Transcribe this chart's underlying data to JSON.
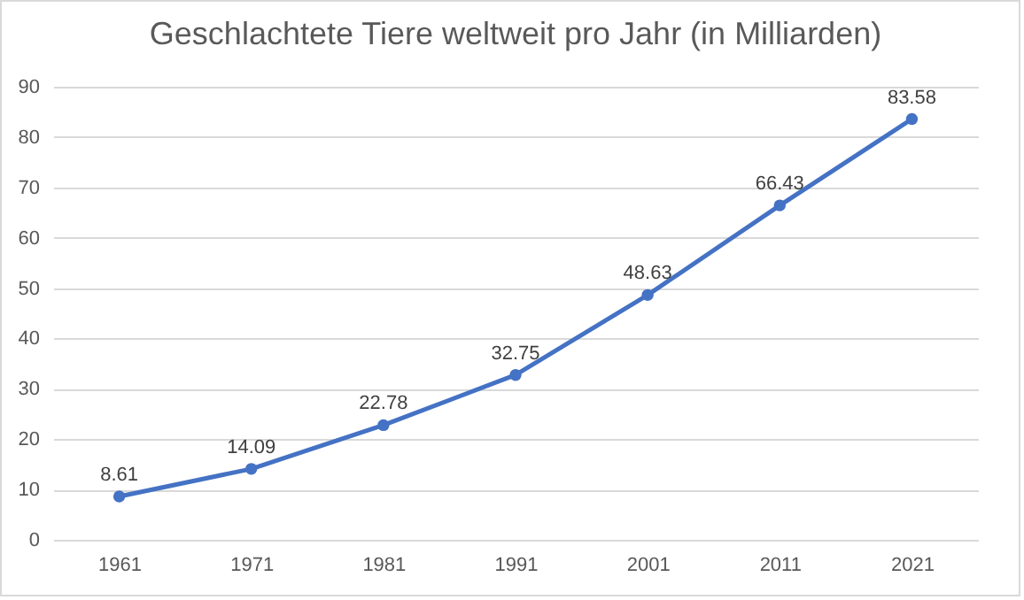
{
  "chart_data": {
    "type": "line",
    "title": "Geschlachtete Tiere weltweit pro Jahr (in Milliarden)",
    "categories": [
      "1961",
      "1971",
      "1981",
      "1991",
      "2001",
      "2011",
      "2021"
    ],
    "values": [
      8.61,
      14.09,
      22.78,
      32.75,
      48.63,
      66.43,
      83.58
    ],
    "color": "#4472c4",
    "ylim": [
      0,
      90
    ],
    "yticks": [
      0,
      10,
      20,
      30,
      40,
      50,
      60,
      70,
      80,
      90
    ],
    "grid": "y",
    "marker": "circle",
    "line_style": "solid",
    "data_labels": true
  }
}
